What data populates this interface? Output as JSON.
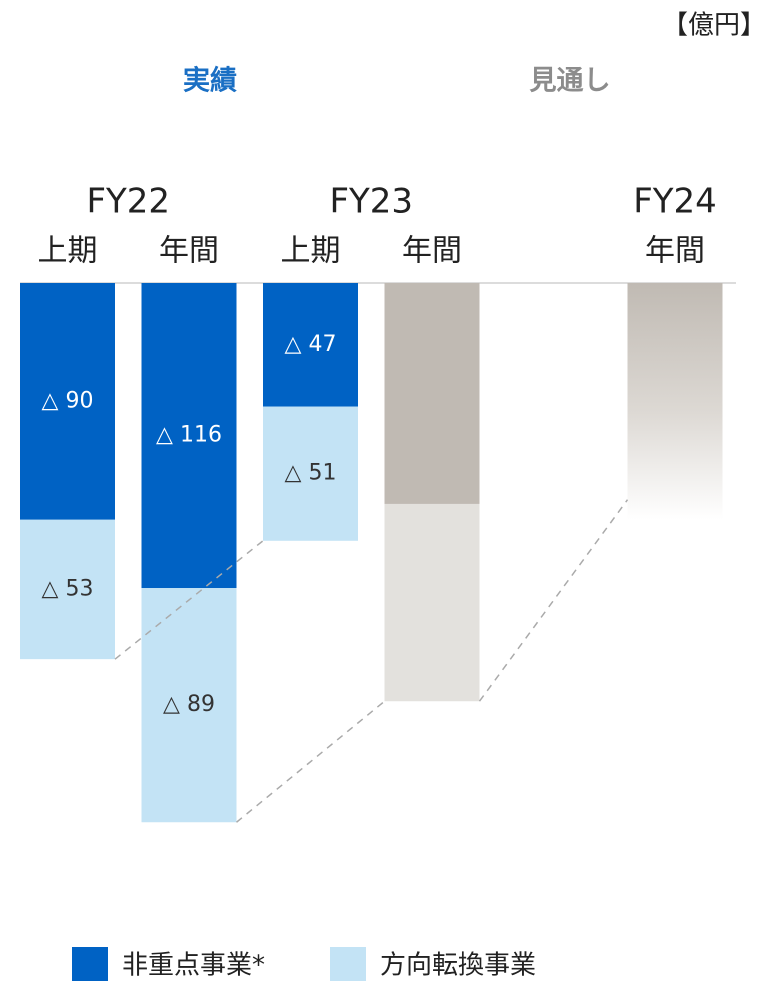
{
  "chart_data": {
    "type": "stacked-bar",
    "unit": "【億円】",
    "headers": [
      {
        "label": "実績",
        "color": "#1a6fc4"
      },
      {
        "label": "見通し",
        "color": "#8c8c8c"
      }
    ],
    "groups": [
      "FY22",
      null,
      "FY23",
      null,
      "FY24"
    ],
    "categories": [
      "上期",
      "年間",
      "上期",
      "年間",
      "年間"
    ],
    "ylim": [
      0,
      -230
    ],
    "series": [
      {
        "name": "非重点事業*",
        "color": "#0062c4",
        "colors": [
          "#0062c4",
          "#0062c4",
          "#0062c4",
          "#c0bab3",
          "#c0bab3"
        ],
        "fade": [
          false,
          false,
          false,
          false,
          true
        ],
        "values": [
          -90,
          -116,
          -47,
          -84,
          -90
        ],
        "value_labels": [
          "△ 90",
          "△ 116",
          "△ 47",
          null,
          null
        ]
      },
      {
        "name": "方向転換事業",
        "color": "#c3e3f5",
        "colors": [
          "#c3e3f5",
          "#c3e3f5",
          "#c3e3f5",
          "#e3e1dd",
          null
        ],
        "fade": [
          false,
          false,
          false,
          false,
          false
        ],
        "values": [
          -53,
          -89,
          -51,
          -75,
          null
        ],
        "value_labels": [
          "△ 53",
          "△ 89",
          "△ 51",
          null,
          null
        ]
      }
    ]
  }
}
